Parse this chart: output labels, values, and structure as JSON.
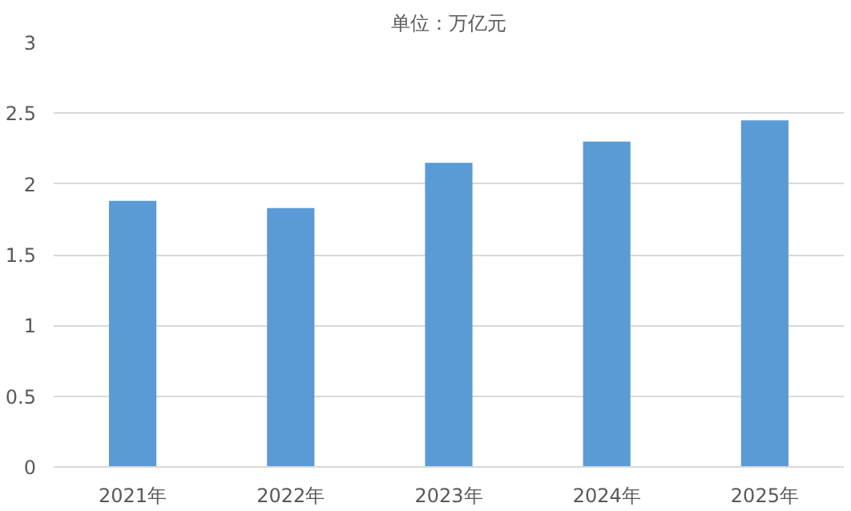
{
  "chart_data": {
    "type": "bar",
    "title": "单位：万亿元",
    "categories": [
      "2021年",
      "2022年",
      "2023年",
      "2024年",
      "2025年"
    ],
    "values": [
      1.88,
      1.83,
      2.15,
      2.3,
      2.45
    ],
    "color": "#5b9bd5",
    "ylim": [
      0,
      3
    ],
    "yticks": [
      0,
      0.5,
      1,
      1.5,
      2,
      2.5,
      3
    ],
    "grid": "y"
  }
}
